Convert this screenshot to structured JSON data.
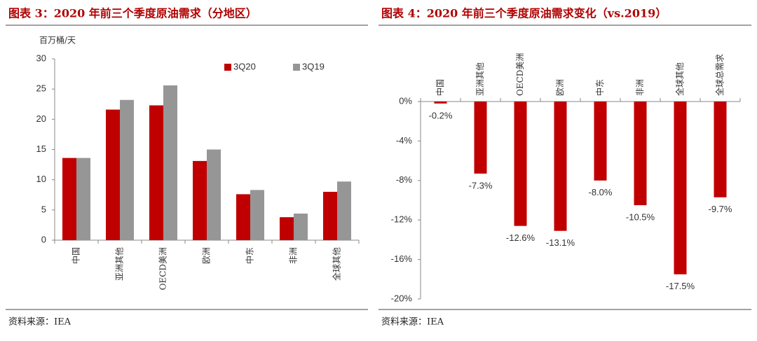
{
  "chart_data": [
    {
      "type": "bar",
      "title": "图表 3：2020 年前三个季度原油需求（分地区）",
      "y_label": "百万桶/天",
      "source": "资料来源：IEA",
      "categories": [
        "中国",
        "亚洲其他",
        "OECD美洲",
        "欧洲",
        "中东",
        "非洲",
        "全球其他"
      ],
      "series": [
        {
          "name": "3Q20",
          "color": "#c00000",
          "values": [
            13.6,
            21.6,
            22.3,
            13.1,
            7.6,
            3.8,
            8.0
          ]
        },
        {
          "name": "3Q19",
          "color": "#969696",
          "values": [
            13.6,
            23.2,
            25.6,
            15.0,
            8.3,
            4.4,
            9.7
          ]
        }
      ],
      "ylim": [
        0,
        30
      ],
      "yticks": [
        0,
        5,
        10,
        15,
        20,
        25,
        30
      ],
      "legend": "top-right"
    },
    {
      "type": "bar",
      "title": "图表 4：2020 年前三个季度原油需求变化（vs.2019）",
      "source": "资料来源：IEA",
      "categories": [
        "中国",
        "亚洲其他",
        "OECD美洲",
        "欧洲",
        "中东",
        "非洲",
        "全球其他",
        "全球总需求"
      ],
      "values": [
        -0.2,
        -7.3,
        -12.6,
        -13.1,
        -8.0,
        -10.5,
        -17.5,
        -9.7
      ],
      "value_labels": [
        "-0.2%",
        "-7.3%",
        "-12.6%",
        "-13.1%",
        "-8.0%",
        "-10.5%",
        "-17.5%",
        "-9.7%"
      ],
      "color": "#c00000",
      "ylim": [
        -20,
        0
      ],
      "yticks": [
        {
          "value": 0,
          "label": "0%"
        },
        {
          "value": -4,
          "label": "-4%"
        },
        {
          "value": -8,
          "label": "-8%"
        },
        {
          "value": -12,
          "label": "-12%"
        },
        {
          "value": -16,
          "label": "-16%"
        },
        {
          "value": -20,
          "label": "-20%"
        }
      ]
    }
  ]
}
